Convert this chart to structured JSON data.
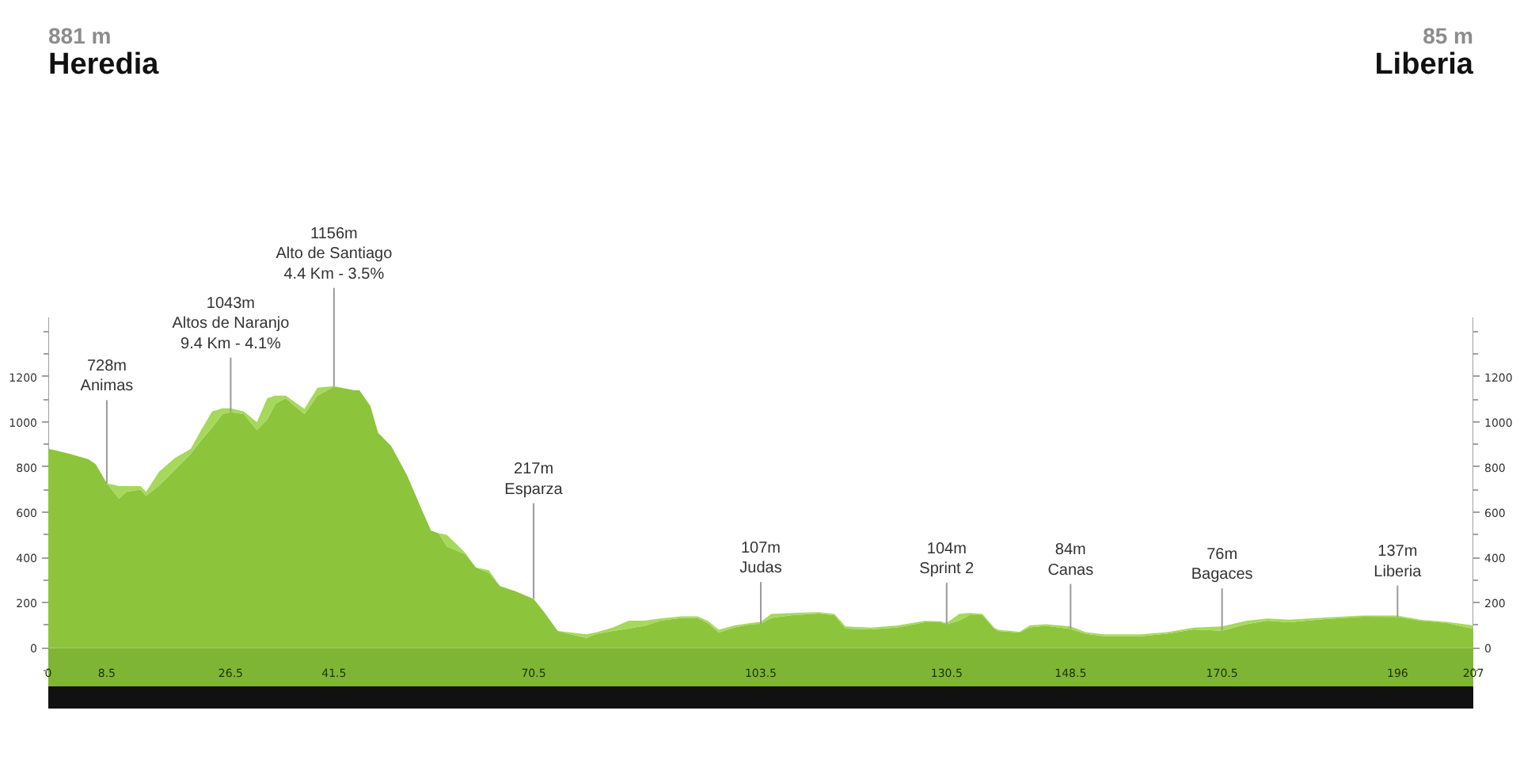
{
  "chart_data": {
    "type": "area",
    "stacked": true,
    "x": [
      0,
      3.1,
      5.8,
      6.9,
      8.5,
      10.3,
      11.3,
      13.4,
      14.2,
      16.1,
      18.4,
      20.7,
      22.2,
      23.8,
      25.3,
      26.5,
      28.4,
      30.3,
      31.8,
      33,
      34.5,
      37.2,
      39.1,
      41.5,
      44.5,
      45.2,
      46.8,
      47.9,
      49.8,
      52.1,
      54.4,
      55.6,
      56.7,
      57.9,
      60.6,
      62.1,
      64,
      65.6,
      67.9,
      70.5,
      72.1,
      74,
      75.5,
      78.2,
      79.7,
      82,
      84.3,
      86.6,
      88.9,
      92,
      94.3,
      95.8,
      97.4,
      99.7,
      102,
      103.5,
      105,
      108.1,
      111.9,
      114.2,
      115.8,
      119.6,
      123.4,
      127.3,
      129.6,
      130.5,
      132.3,
      133.8,
      135.7,
      137.4,
      138,
      141.1,
      142.6,
      144.9,
      148.5,
      150.7,
      153.3,
      158.7,
      162.5,
      166.4,
      170.5,
      174,
      177.1,
      180.2,
      185.5,
      190.9,
      196,
      199.3,
      203.2,
      207
    ],
    "series": [
      {
        "color": "#8cc43c",
        "values": [
          881,
          858,
          835,
          812,
          728,
          660,
          690,
          700,
          672,
          718,
          788,
          858,
          917,
          975,
          1034,
          1043,
          1034,
          963,
          1010,
          1081,
          1104,
          1034,
          1116,
          1156,
          1139,
          1139,
          1069,
          952,
          893,
          765,
          601,
          519,
          507,
          449,
          414,
          356,
          332,
          274,
          250,
          217,
          156,
          75,
          63,
          44,
          63,
          75,
          86,
          98,
          121,
          133,
          133,
          110,
          68,
          91,
          105,
          107,
          133,
          145,
          152,
          145,
          86,
          82,
          91,
          114,
          114,
          104,
          121,
          145,
          145,
          86,
          75,
          68,
          91,
          98,
          84,
          63,
          51,
          51,
          63,
          82,
          76,
          105,
          121,
          114,
          128,
          138,
          137,
          121,
          110,
          85
        ]
      },
      {
        "color": "#a6d85c",
        "values": [
          0,
          0,
          0,
          0,
          0,
          56,
          26,
          16,
          18,
          62,
          52,
          22,
          46,
          71,
          26,
          17,
          12,
          35,
          94,
          35,
          12,
          23,
          35,
          2,
          0,
          0,
          0,
          0,
          0,
          0,
          0,
          0,
          0,
          51,
          6,
          0,
          12,
          0,
          0,
          0,
          0,
          0,
          7,
          16,
          7,
          15,
          35,
          23,
          9,
          7,
          7,
          10,
          12,
          9,
          5,
          8,
          17,
          10,
          6,
          5,
          9,
          8,
          9,
          6,
          4,
          6,
          29,
          10,
          5,
          4,
          5,
          4,
          9,
          7,
          11,
          7,
          9,
          9,
          7,
          8,
          19,
          15,
          9,
          11,
          7,
          5,
          6,
          4,
          5,
          15
        ]
      }
    ],
    "bands": [
      {
        "axis": "y",
        "from": -170,
        "to": 0,
        "color": "#7fb535"
      }
    ],
    "xlim": [
      0,
      207
    ],
    "xticks": [
      0,
      8.5,
      26.5,
      41.5,
      70.5,
      103.5,
      130.5,
      148.5,
      170.5,
      196,
      207
    ],
    "ylim": [
      -170,
      1460
    ],
    "yticks": [
      0,
      200,
      400,
      600,
      800,
      1000,
      1200
    ],
    "y2lim": [
      -170,
      1460
    ],
    "y2ticks": [
      0,
      200,
      400,
      600,
      800,
      1000,
      1200
    ],
    "annotations": [
      "881 m\nHeredia",
      "85 m\nLiberia",
      {
        "text": "728m\nAnimas",
        "x": 8.5,
        "y": 728
      },
      {
        "text": "1043m\nAltos de Naranjo\n9.4 Km - 4.1%",
        "x": 26.5,
        "y": 1043
      },
      {
        "text": "1156m\nAlto de Santiago\n4.4 Km - 3.5%",
        "x": 41.5,
        "y": 1156
      },
      {
        "text": "217m\nEsparza",
        "x": 70.5,
        "y": 217
      },
      {
        "text": "107m\nJudas",
        "x": 103.5,
        "y": 107
      },
      {
        "text": "104m\nSprint 2",
        "x": 130.5,
        "y": 104
      },
      {
        "text": "84m\nCanas",
        "x": 148.5,
        "y": 84
      },
      {
        "text": "76m\nBagaces",
        "x": 170.5,
        "y": 76
      },
      {
        "text": "137m\nLiberia",
        "x": 196,
        "y": 137
      }
    ]
  }
}
